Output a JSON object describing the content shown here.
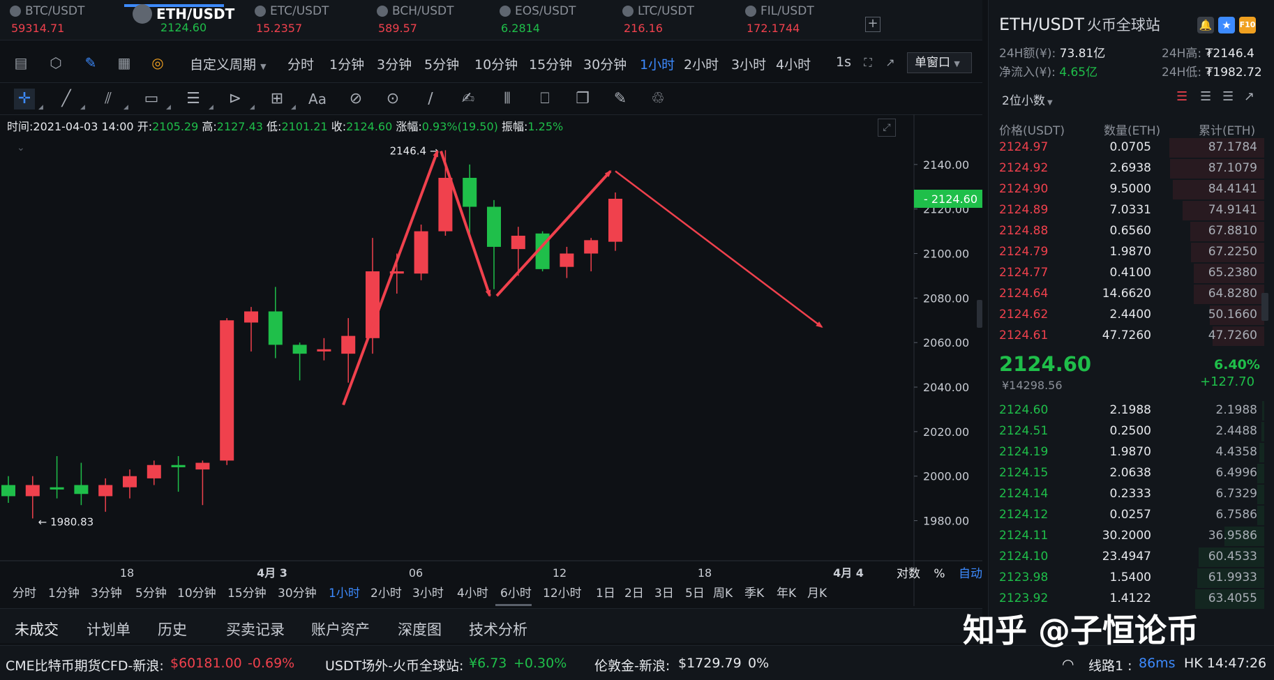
{
  "tabs": [
    {
      "symbol": "BTC/USDT",
      "price": "59314.71",
      "dir": "up"
    },
    {
      "symbol": "ETH/USDT",
      "price": "2124.60",
      "dir": "down",
      "active": true
    },
    {
      "symbol": "ETC/USDT",
      "price": "15.2357",
      "dir": "up"
    },
    {
      "symbol": "BCH/USDT",
      "price": "589.57",
      "dir": "up"
    },
    {
      "symbol": "EOS/USDT",
      "price": "6.2814",
      "dir": "down"
    },
    {
      "symbol": "LTC/USDT",
      "price": "216.16",
      "dir": "up"
    },
    {
      "symbol": "FIL/USDT",
      "price": "172.1744",
      "dir": "up"
    }
  ],
  "tab_add": "+",
  "interval_bar": {
    "custom_period": "自定义周期",
    "intervals": [
      "分时",
      "1分钟",
      "3分钟",
      "5分钟",
      "10分钟",
      "15分钟",
      "30分钟",
      "1小时",
      "2小时",
      "3小时",
      "4小时"
    ],
    "selected": "1小时",
    "refresh": "1s",
    "window_mode": "单窗口"
  },
  "draw_tools": {
    "text_tool": "Aa"
  },
  "ohlc": {
    "time_label": "时间:",
    "time": "2021-04-03 14:00",
    "open_label": "开:",
    "open": "2105.29",
    "high_label": "高:",
    "high": "2127.43",
    "low_label": "低:",
    "low": "2101.21",
    "close_label": "收:",
    "close": "2124.60",
    "change_label": "涨幅:",
    "change": "0.93%(19.50)",
    "amp_label": "振幅:",
    "amp": "1.25%"
  },
  "chart_data": {
    "type": "candlestick",
    "interval": "1小时",
    "y_ticks": [
      1980,
      2000,
      2020,
      2040,
      2060,
      2080,
      2100,
      2120,
      2140
    ],
    "y_tick_labels": [
      "1980.00",
      "2000.00",
      "2020.00",
      "2040.00",
      "2060.00",
      "2080.00",
      "2100.00",
      "2120.00",
      "2140.00"
    ],
    "ylim": [
      1962,
      2160
    ],
    "x_labels": [
      "18",
      "4月 3",
      "06",
      "12",
      "18",
      "4月 4"
    ],
    "current_price_label": "2124.60",
    "high_marker": "2146.4 →",
    "low_marker": "← 1980.83",
    "candles": [
      {
        "o": 1996,
        "h": 2000,
        "l": 1988,
        "c": 1991
      },
      {
        "o": 1991,
        "h": 2000,
        "l": 1981,
        "c": 1996
      },
      {
        "o": 1995,
        "h": 2009,
        "l": 1990,
        "c": 1994
      },
      {
        "o": 1996,
        "h": 2006,
        "l": 1987,
        "c": 1992
      },
      {
        "o": 1991,
        "h": 1999,
        "l": 1984,
        "c": 1996
      },
      {
        "o": 1995,
        "h": 2003,
        "l": 1990,
        "c": 2000
      },
      {
        "o": 1999,
        "h": 2007,
        "l": 1996,
        "c": 2005
      },
      {
        "o": 2005,
        "h": 2009,
        "l": 1993,
        "c": 2004
      },
      {
        "o": 2003,
        "h": 2007,
        "l": 1987,
        "c": 2006
      },
      {
        "o": 2007,
        "h": 2071,
        "l": 2005,
        "c": 2070
      },
      {
        "o": 2069,
        "h": 2076,
        "l": 2056,
        "c": 2074
      },
      {
        "o": 2074,
        "h": 2085,
        "l": 2053,
        "c": 2059
      },
      {
        "o": 2059,
        "h": 2060,
        "l": 2043,
        "c": 2055
      },
      {
        "o": 2056,
        "h": 2062,
        "l": 2052,
        "c": 2057
      },
      {
        "o": 2055,
        "h": 2071,
        "l": 2042,
        "c": 2063
      },
      {
        "o": 2062,
        "h": 2107,
        "l": 2055,
        "c": 2092
      },
      {
        "o": 2091,
        "h": 2100,
        "l": 2082,
        "c": 2092
      },
      {
        "o": 2091,
        "h": 2113,
        "l": 2088,
        "c": 2110
      },
      {
        "o": 2110,
        "h": 2146.4,
        "l": 2108,
        "c": 2134
      },
      {
        "o": 2134,
        "h": 2140,
        "l": 2107,
        "c": 2121
      },
      {
        "o": 2121,
        "h": 2124,
        "l": 2084,
        "c": 2103
      },
      {
        "o": 2102,
        "h": 2112,
        "l": 2090,
        "c": 2108
      },
      {
        "o": 2109,
        "h": 2110,
        "l": 2092,
        "c": 2093
      },
      {
        "o": 2094,
        "h": 2103,
        "l": 2089,
        "c": 2100
      },
      {
        "o": 2100,
        "h": 2107,
        "l": 2092,
        "c": 2106
      },
      {
        "o": 2105.29,
        "h": 2127.43,
        "l": 2101.21,
        "c": 2124.6
      }
    ]
  },
  "bottom_intervals": {
    "items": [
      "分时",
      "1分钟",
      "3分钟",
      "5分钟",
      "10分钟",
      "15分钟",
      "30分钟",
      "1小时",
      "2小时",
      "3小时",
      "4小时",
      "6小时",
      "12小时",
      "1日",
      "2日",
      "3日",
      "5日",
      "周K",
      "季K",
      "年K",
      "月K"
    ],
    "selected": "1小时"
  },
  "axis_mode": {
    "log": "对数",
    "percent": "%",
    "auto": "自动"
  },
  "bottom_tabs": [
    "未成交",
    "计划单",
    "历史",
    "买卖记录",
    "账户资产",
    "深度图",
    "技术分析"
  ],
  "status": {
    "cme_label": "CME比特币期货CFD-新浪:",
    "cme_price": "$60181.00",
    "cme_chg": "-0.69%",
    "usdt_label": "USDT场外-火币全球站:",
    "usdt_price": "¥6.73",
    "usdt_chg": "+0.30%",
    "gold_label": "伦敦金-新浪:",
    "gold_price": "$1729.79",
    "gold_chg": "0%",
    "line_label": "线路1 : ",
    "latency": "86ms",
    "clock": "HK 14:47:26"
  },
  "right": {
    "title": "ETH/USDT",
    "exchange": "火币全球站",
    "vol_label": "24H额(¥):",
    "vol": "73.81亿",
    "high_label": "24H高:",
    "high": "₮2146.4",
    "inflow_label": "净流入(¥):",
    "inflow": "4.65亿",
    "low_label": "24H低:",
    "low": "₮1982.72",
    "decimal": "2位小数",
    "col_price": "价格(USDT)",
    "col_qty": "数量(ETH)",
    "col_total": "累计(ETH)",
    "asks": [
      {
        "p": "2124.97",
        "q": "0.0705",
        "t": "87.1784"
      },
      {
        "p": "2124.92",
        "q": "2.6938",
        "t": "87.1079"
      },
      {
        "p": "2124.90",
        "q": "9.5000",
        "t": "84.4141"
      },
      {
        "p": "2124.89",
        "q": "7.0331",
        "t": "74.9141"
      },
      {
        "p": "2124.88",
        "q": "0.6560",
        "t": "67.8810"
      },
      {
        "p": "2124.79",
        "q": "1.9870",
        "t": "67.2250"
      },
      {
        "p": "2124.77",
        "q": "0.4100",
        "t": "65.2380"
      },
      {
        "p": "2124.64",
        "q": "14.6620",
        "t": "64.8280"
      },
      {
        "p": "2124.62",
        "q": "2.4400",
        "t": "50.1660"
      },
      {
        "p": "2124.61",
        "q": "47.7260",
        "t": "47.7260"
      }
    ],
    "last_price": "2124.60",
    "last_cny": "¥14298.56",
    "last_pct": "6.40%",
    "last_chg": "+127.70",
    "bids": [
      {
        "p": "2124.60",
        "q": "2.1988",
        "t": "2.1988"
      },
      {
        "p": "2124.51",
        "q": "0.2500",
        "t": "2.4488"
      },
      {
        "p": "2124.19",
        "q": "1.9870",
        "t": "4.4358"
      },
      {
        "p": "2124.15",
        "q": "2.0638",
        "t": "6.4996"
      },
      {
        "p": "2124.14",
        "q": "0.2333",
        "t": "6.7329"
      },
      {
        "p": "2124.12",
        "q": "0.0257",
        "t": "6.7586"
      },
      {
        "p": "2124.11",
        "q": "30.2000",
        "t": "36.9586"
      },
      {
        "p": "2124.10",
        "q": "23.4947",
        "t": "60.4533"
      },
      {
        "p": "2123.98",
        "q": "1.5400",
        "t": "61.9933"
      },
      {
        "p": "2123.92",
        "q": "1.4122",
        "t": "63.4055"
      }
    ]
  },
  "watermark": "知乎 @子恒论币",
  "colors": {
    "up": "#f0414d",
    "down": "#1fbf4a",
    "accent": "#3d8bff",
    "arrow": "#f0414d"
  }
}
